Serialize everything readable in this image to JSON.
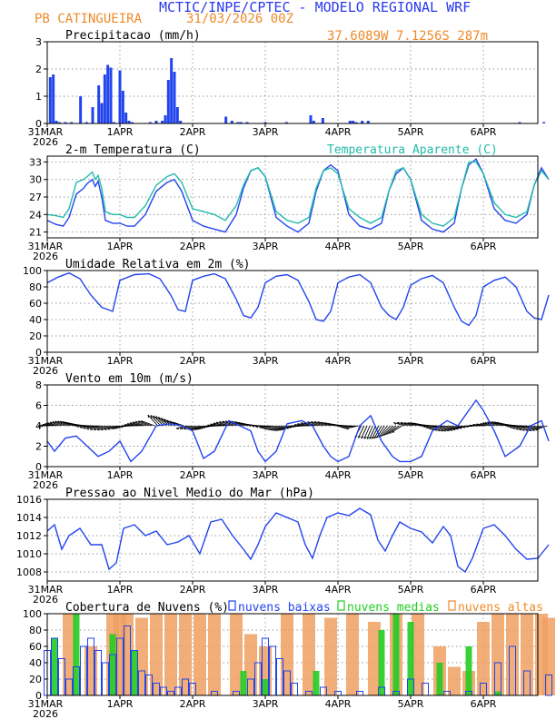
{
  "header": {
    "title": "MCTIC/INPE/CPTEC - MODELO REGIONAL WRF",
    "station": "PB CATINGUEIRA",
    "run": "31/03/2026 00Z",
    "location": "37.6089W 7.1256S 287m"
  },
  "colors": {
    "title_blue": "#2a3aee",
    "orange": "#ee8a2a",
    "line_blue": "#2244ee",
    "teal": "#22bbaa",
    "green": "#22cc22",
    "bar_orange": "#f0a060",
    "vector": "#000000"
  },
  "x_axis": {
    "ticks": [
      {
        "label": "31MAR",
        "day": 0
      },
      {
        "label": "1APR",
        "day": 1
      },
      {
        "label": "2APR",
        "day": 2
      },
      {
        "label": "3APR",
        "day": 3
      },
      {
        "label": "4APR",
        "day": 4
      },
      {
        "label": "5APR",
        "day": 5
      },
      {
        "label": "6APR",
        "day": 6
      }
    ],
    "year_label": "2026",
    "range_days": [
      0,
      6.9
    ]
  },
  "chart_data": [
    {
      "type": "bar",
      "title": "Precipitacao (mm/h)",
      "ylim": [
        0,
        3
      ],
      "yticks": [
        0,
        1,
        2,
        3
      ],
      "grid": true,
      "x_hours": [
        1,
        2,
        3,
        4,
        6,
        8,
        11,
        13,
        15,
        17,
        18,
        19,
        20,
        21,
        22,
        24,
        25,
        26,
        27,
        28,
        34,
        36,
        38,
        39,
        40,
        41,
        42,
        43,
        44,
        59,
        61,
        63,
        64,
        66,
        72,
        79,
        87,
        88,
        91,
        100,
        101,
        102,
        104,
        106,
        156,
        164,
        210,
        214,
        215
      ],
      "values": [
        1.7,
        1.8,
        0.1,
        0.05,
        0.05,
        0.05,
        1.0,
        0.05,
        0.6,
        1.4,
        0.75,
        1.8,
        2.15,
        2.05,
        0.05,
        1.95,
        1.2,
        0.4,
        0.1,
        0.05,
        0.05,
        0.1,
        0.1,
        0.3,
        1.6,
        2.4,
        1.9,
        0.6,
        0.1,
        0.25,
        0.1,
        0.05,
        0.05,
        0.05,
        0.05,
        0.05,
        0.3,
        0.1,
        0.2,
        0.1,
        0.1,
        0.05,
        0.1,
        0.1,
        0.05,
        0.05,
        0.05,
        0.1,
        0.1
      ]
    },
    {
      "type": "line",
      "title": "2-m Temperatura (C)",
      "ylim": [
        20,
        34
      ],
      "yticks": [
        21,
        24,
        27,
        30,
        33
      ],
      "grid": true,
      "series": [
        {
          "name": "2-m Temperatura (C)",
          "color": "#2244ee",
          "x_days": [
            0,
            0.12,
            0.22,
            0.3,
            0.4,
            0.5,
            0.55,
            0.62,
            0.66,
            0.7,
            0.75,
            0.8,
            0.9,
            1.0,
            1.1,
            1.2,
            1.35,
            1.5,
            1.65,
            1.75,
            1.85,
            2.0,
            2.15,
            2.3,
            2.45,
            2.6,
            2.7,
            2.8,
            2.9,
            3.0,
            3.15,
            3.3,
            3.45,
            3.6,
            3.7,
            3.8,
            3.9,
            4.0,
            4.15,
            4.3,
            4.45,
            4.6,
            4.7,
            4.8,
            4.9,
            5.0,
            5.15,
            5.3,
            5.45,
            5.6,
            5.7,
            5.8,
            5.9,
            6.0,
            6.15,
            6.3,
            6.45,
            6.6,
            6.7,
            6.8,
            6.9
          ],
          "values": [
            23,
            22.3,
            22.0,
            23.5,
            27.5,
            28.5,
            29.3,
            30.0,
            28.8,
            29.7,
            27.0,
            23.0,
            22.5,
            22.5,
            22.0,
            22.0,
            24.0,
            28.0,
            29.5,
            30.0,
            28.0,
            23.0,
            22.0,
            21.5,
            21.0,
            24.0,
            28.5,
            31.5,
            32.0,
            30.5,
            23.5,
            22.0,
            21.0,
            22.5,
            28.0,
            31.5,
            32.5,
            31.5,
            24.0,
            22.0,
            21.5,
            22.5,
            28.0,
            31.0,
            32.0,
            30.0,
            23.0,
            21.5,
            21.0,
            22.5,
            28.5,
            32.5,
            33.5,
            31.0,
            25.0,
            23.0,
            22.5,
            24.0,
            29.0,
            32.0,
            30.0
          ]
        },
        {
          "name": "Temperatura Aparente (C)",
          "color": "#22bbaa",
          "x_days": [
            0,
            0.12,
            0.22,
            0.3,
            0.4,
            0.5,
            0.55,
            0.62,
            0.66,
            0.7,
            0.75,
            0.8,
            0.9,
            1.0,
            1.1,
            1.2,
            1.35,
            1.5,
            1.65,
            1.75,
            1.85,
            2.0,
            2.15,
            2.3,
            2.45,
            2.6,
            2.7,
            2.8,
            2.9,
            3.0,
            3.15,
            3.3,
            3.45,
            3.6,
            3.7,
            3.8,
            3.9,
            4.0,
            4.15,
            4.3,
            4.45,
            4.6,
            4.7,
            4.8,
            4.9,
            5.0,
            5.15,
            5.3,
            5.45,
            5.6,
            5.7,
            5.8,
            5.9,
            6.0,
            6.15,
            6.3,
            6.45,
            6.6,
            6.7,
            6.8,
            6.9
          ],
          "values": [
            24,
            23.8,
            23.5,
            25.0,
            29.5,
            30.0,
            30.5,
            31.3,
            30.0,
            30.7,
            28.5,
            24.5,
            24.0,
            24.0,
            23.5,
            23.5,
            25.5,
            29.0,
            30.5,
            31.0,
            29.5,
            25.0,
            24.5,
            24.0,
            23.0,
            25.5,
            29.0,
            31.5,
            32.0,
            30.5,
            24.5,
            23.0,
            22.5,
            23.5,
            28.5,
            31.5,
            32.0,
            31.0,
            25.0,
            23.5,
            22.5,
            23.5,
            28.0,
            31.5,
            32.0,
            30.0,
            24.0,
            22.5,
            22.0,
            23.5,
            28.5,
            33.0,
            33.0,
            31.0,
            26.0,
            24.0,
            23.5,
            24.5,
            29.0,
            31.5,
            30.0
          ]
        }
      ]
    },
    {
      "type": "line",
      "title": "Umidade Relativa em 2m (%)",
      "ylim": [
        0,
        100
      ],
      "yticks": [
        0,
        20,
        40,
        60,
        80,
        100
      ],
      "grid": true,
      "series": [
        {
          "name": "Umidade Relativa em 2m (%)",
          "color": "#2244ee",
          "x_days": [
            0,
            0.15,
            0.3,
            0.45,
            0.6,
            0.75,
            0.9,
            1.0,
            1.2,
            1.4,
            1.55,
            1.7,
            1.8,
            1.9,
            2.0,
            2.15,
            2.3,
            2.45,
            2.6,
            2.7,
            2.8,
            2.9,
            3.0,
            3.15,
            3.3,
            3.45,
            3.6,
            3.7,
            3.8,
            3.9,
            4.0,
            4.15,
            4.3,
            4.45,
            4.6,
            4.7,
            4.8,
            4.9,
            5.0,
            5.15,
            5.3,
            5.45,
            5.6,
            5.7,
            5.8,
            5.9,
            6.0,
            6.15,
            6.3,
            6.45,
            6.6,
            6.7,
            6.8,
            6.9
          ],
          "values": [
            85,
            92,
            97,
            90,
            70,
            55,
            50,
            88,
            95,
            96,
            90,
            70,
            52,
            50,
            88,
            93,
            96,
            90,
            65,
            45,
            42,
            55,
            85,
            93,
            95,
            88,
            62,
            40,
            38,
            50,
            85,
            92,
            95,
            85,
            55,
            45,
            40,
            55,
            82,
            90,
            94,
            85,
            55,
            38,
            33,
            45,
            80,
            88,
            92,
            80,
            50,
            42,
            40,
            70
          ]
        }
      ]
    },
    {
      "type": "line",
      "title": "Vento em 10m (m/s)",
      "ylim": [
        0,
        8
      ],
      "yticks": [
        0,
        2,
        4,
        6,
        8
      ],
      "grid": true,
      "wind_vectors": true,
      "series": [
        {
          "name": "Vento em 10m (m/s)",
          "color": "#2244ee",
          "x_days": [
            0,
            0.1,
            0.25,
            0.4,
            0.55,
            0.7,
            0.85,
            1.0,
            1.15,
            1.3,
            1.5,
            1.7,
            1.85,
            2.0,
            2.15,
            2.3,
            2.5,
            2.65,
            2.8,
            2.9,
            3.0,
            3.15,
            3.3,
            3.5,
            3.65,
            3.8,
            3.9,
            4.0,
            4.15,
            4.3,
            4.45,
            4.6,
            4.75,
            4.85,
            5.0,
            5.15,
            5.3,
            5.5,
            5.65,
            5.8,
            5.9,
            6.0,
            6.15,
            6.3,
            6.5,
            6.65,
            6.8,
            6.9
          ],
          "values": [
            2.5,
            1.5,
            2.8,
            3.0,
            2.0,
            1.0,
            1.5,
            2.5,
            0.5,
            1.5,
            4.0,
            4.2,
            4.0,
            3.5,
            0.8,
            1.5,
            4.5,
            4.0,
            3.5,
            1.5,
            0.5,
            1.5,
            4.2,
            4.5,
            4.0,
            2.0,
            1.0,
            0.5,
            1.0,
            4.0,
            5.0,
            2.5,
            1.0,
            0.5,
            0.5,
            1.0,
            3.5,
            4.5,
            4.0,
            5.5,
            6.5,
            5.5,
            3.5,
            1.0,
            2.0,
            4.0,
            4.5,
            2.5
          ]
        }
      ]
    },
    {
      "type": "line",
      "title": "Pressao ao Nivel Medio do Mar (hPa)",
      "ylim": [
        1007,
        1016
      ],
      "yticks": [
        1008,
        1010,
        1012,
        1014,
        1016
      ],
      "grid": true,
      "series": [
        {
          "name": "Pressao ao Nivel Medio do Mar (hPa)",
          "color": "#2244ee",
          "x_days": [
            0,
            0.1,
            0.2,
            0.3,
            0.45,
            0.6,
            0.75,
            0.85,
            0.95,
            1.05,
            1.2,
            1.35,
            1.5,
            1.65,
            1.8,
            1.95,
            2.1,
            2.25,
            2.4,
            2.55,
            2.7,
            2.8,
            2.9,
            3.0,
            3.15,
            3.3,
            3.45,
            3.55,
            3.65,
            3.75,
            3.85,
            4.0,
            4.15,
            4.3,
            4.45,
            4.55,
            4.65,
            4.75,
            4.85,
            5.0,
            5.15,
            5.3,
            5.45,
            5.55,
            5.65,
            5.75,
            5.85,
            6.0,
            6.15,
            6.3,
            6.45,
            6.6,
            6.75,
            6.9
          ],
          "values": [
            1012.5,
            1013.2,
            1010.5,
            1012.0,
            1012.8,
            1011.0,
            1011.0,
            1008.3,
            1009.0,
            1012.8,
            1013.2,
            1012.0,
            1012.5,
            1011.0,
            1011.3,
            1012.0,
            1010.0,
            1013.5,
            1013.8,
            1012.0,
            1010.5,
            1009.4,
            1011.0,
            1013.0,
            1014.5,
            1014.0,
            1013.5,
            1011.0,
            1009.5,
            1012.0,
            1014.0,
            1014.5,
            1014.2,
            1015.0,
            1014.3,
            1011.5,
            1010.3,
            1012.0,
            1013.5,
            1012.8,
            1012.4,
            1011.2,
            1013.0,
            1012.0,
            1008.6,
            1008.0,
            1009.5,
            1012.8,
            1013.2,
            1012.0,
            1010.5,
            1009.4,
            1009.5,
            1011.0
          ]
        }
      ]
    },
    {
      "type": "bar",
      "title": "Cobertura de Nuvens (%)",
      "ylim": [
        0,
        100
      ],
      "yticks": [
        0,
        20,
        40,
        60,
        80,
        100
      ],
      "grid": true,
      "series": [
        {
          "name": "nuvens baixas",
          "color": "#2244ee",
          "x_days": [
            0,
            0.1,
            0.2,
            0.3,
            0.4,
            0.5,
            0.6,
            0.7,
            0.8,
            0.9,
            1.0,
            1.1,
            1.2,
            1.3,
            1.4,
            1.5,
            1.6,
            1.7,
            1.8,
            1.9,
            2.0,
            2.3,
            2.6,
            2.8,
            2.9,
            3.0,
            3.1,
            3.2,
            3.3,
            3.4,
            3.6,
            3.8,
            4.0,
            4.3,
            4.6,
            4.8,
            5.0,
            5.2,
            5.5,
            5.8,
            6.0,
            6.2,
            6.4,
            6.6,
            6.9
          ],
          "values": [
            55,
            70,
            45,
            20,
            35,
            60,
            70,
            55,
            40,
            50,
            70,
            85,
            55,
            30,
            25,
            15,
            10,
            5,
            10,
            20,
            15,
            5,
            5,
            20,
            40,
            70,
            60,
            45,
            30,
            15,
            5,
            10,
            5,
            5,
            10,
            5,
            20,
            15,
            5,
            5,
            15,
            40,
            60,
            30,
            25
          ]
        },
        {
          "name": "nuvens medias",
          "color": "#22cc22",
          "x_days": [
            0.1,
            0.4,
            0.9,
            1.2,
            2.7,
            3.0,
            3.7,
            4.6,
            4.8,
            5.0,
            5.4,
            5.8,
            6.2
          ],
          "values": [
            70,
            100,
            75,
            55,
            30,
            20,
            30,
            80,
            100,
            90,
            40,
            60,
            5
          ]
        },
        {
          "name": "nuvens altas",
          "color": "#f0a060",
          "x_days": [
            0.3,
            0.6,
            0.9,
            1.0,
            1.1,
            1.3,
            1.5,
            1.7,
            1.9,
            2.1,
            2.3,
            2.6,
            2.8,
            3.0,
            3.3,
            3.6,
            3.9,
            4.2,
            4.5,
            4.8,
            5.1,
            5.4,
            5.6,
            5.8,
            6.0,
            6.2,
            6.4,
            6.6,
            6.8,
            6.9
          ],
          "values": [
            100,
            60,
            100,
            100,
            100,
            95,
            100,
            100,
            100,
            100,
            100,
            100,
            75,
            60,
            100,
            100,
            95,
            100,
            90,
            100,
            100,
            60,
            35,
            30,
            90,
            100,
            100,
            100,
            100,
            95
          ]
        }
      ]
    }
  ]
}
